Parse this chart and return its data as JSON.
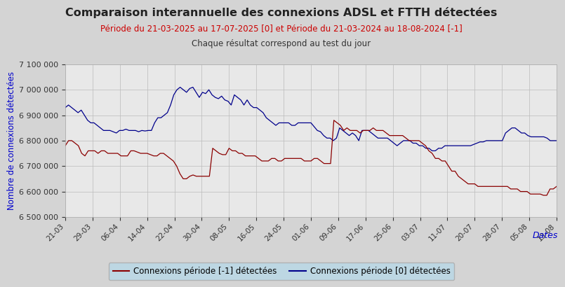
{
  "title": "Comparaison interannuelle des connexions ADSL et FTTH détectées",
  "subtitle": "Période du 21-03-2025 au 17-07-2025 [0] et Période du 21-03-2024 au 18-08-2024 [-1]",
  "subtitle2": "Chaque résultat correspond au test du jour",
  "xlabel": "Dates",
  "ylabel": "Nombre de connexions détectées",
  "title_color": "#222222",
  "subtitle_color": "#cc0000",
  "subtitle2_color": "#333333",
  "ylabel_color": "#0000cc",
  "xlabel_color": "#0000cc",
  "line0_color": "#00008B",
  "line1_color": "#8B0000",
  "bg_color": "#d4d4d4",
  "plot_bg_color": "#e8e8e8",
  "legend_bg_color": "#b8d8e8",
  "ylim": [
    6500000,
    7100000
  ],
  "yticks": [
    6500000,
    6600000,
    6700000,
    6800000,
    6900000,
    7000000,
    7100000
  ],
  "xtick_labels": [
    "21-03",
    "29-03",
    "06-04",
    "14-04",
    "22-04",
    "30-04",
    "08-05",
    "16-05",
    "24-05",
    "01-06",
    "09-06",
    "17-06",
    "25-06",
    "03-07",
    "11-07",
    "20-07",
    "28-07",
    "05-08",
    "13-08"
  ],
  "legend0_label": "Connexions période [-1] détectées",
  "legend1_label": "Connexions période [0] détectées",
  "blue_data": [
    6930000,
    6940000,
    6930000,
    6920000,
    6910000,
    6920000,
    6900000,
    6880000,
    6870000,
    6870000,
    6860000,
    6850000,
    6840000,
    6840000,
    6840000,
    6835000,
    6830000,
    6840000,
    6840000,
    6845000,
    6840000,
    6840000,
    6840000,
    6835000,
    6840000,
    6838000,
    6840000,
    6840000,
    6870000,
    6890000,
    6890000,
    6900000,
    6910000,
    6940000,
    6980000,
    7000000,
    7010000,
    7000000,
    6990000,
    7005000,
    7010000,
    6990000,
    6970000,
    6990000,
    6985000,
    7000000,
    6980000,
    6970000,
    6965000,
    6975000,
    6960000,
    6955000,
    6940000,
    6980000,
    6970000,
    6960000,
    6940000,
    6960000,
    6940000,
    6930000,
    6930000,
    6920000,
    6910000,
    6890000,
    6880000,
    6870000,
    6860000,
    6870000,
    6870000,
    6870000,
    6870000,
    6860000,
    6860000,
    6870000,
    6870000,
    6870000,
    6870000,
    6870000,
    6855000,
    6840000,
    6835000,
    6820000,
    6810000,
    6810000,
    6800000,
    6810000,
    6850000,
    6840000,
    6830000,
    6820000,
    6830000,
    6820000,
    6800000,
    6840000,
    6840000,
    6840000,
    6830000,
    6820000,
    6810000,
    6810000,
    6810000,
    6810000,
    6800000,
    6790000,
    6780000,
    6790000,
    6800000,
    6800000,
    6800000,
    6790000,
    6790000,
    6780000,
    6780000,
    6770000,
    6770000,
    6760000,
    6760000,
    6770000,
    6770000,
    6780000,
    6780000,
    6780000,
    6780000,
    6780000,
    6780000,
    6780000,
    6780000,
    6780000,
    6785000,
    6790000,
    6795000,
    6795000,
    6800000,
    6800000,
    6800000,
    6800000,
    6800000,
    6800000,
    6830000,
    6840000,
    6850000,
    6850000,
    6840000,
    6830000,
    6830000,
    6820000,
    6815000,
    6815000,
    6815000,
    6815000,
    6815000,
    6810000,
    6800000,
    6800000,
    6800000
  ],
  "red_data": [
    6780000,
    6800000,
    6800000,
    6790000,
    6780000,
    6750000,
    6740000,
    6760000,
    6760000,
    6760000,
    6750000,
    6760000,
    6760000,
    6750000,
    6750000,
    6750000,
    6750000,
    6740000,
    6740000,
    6740000,
    6760000,
    6760000,
    6755000,
    6750000,
    6750000,
    6750000,
    6745000,
    6740000,
    6740000,
    6750000,
    6750000,
    6740000,
    6730000,
    6720000,
    6700000,
    6670000,
    6650000,
    6650000,
    6660000,
    6665000,
    6660000,
    6660000,
    6660000,
    6660000,
    6660000,
    6770000,
    6760000,
    6750000,
    6745000,
    6745000,
    6770000,
    6760000,
    6760000,
    6750000,
    6750000,
    6740000,
    6740000,
    6740000,
    6740000,
    6730000,
    6720000,
    6720000,
    6720000,
    6730000,
    6730000,
    6720000,
    6720000,
    6730000,
    6730000,
    6730000,
    6730000,
    6730000,
    6730000,
    6720000,
    6720000,
    6720000,
    6730000,
    6730000,
    6720000,
    6710000,
    6710000,
    6710000,
    6880000,
    6870000,
    6860000,
    6840000,
    6850000,
    6840000,
    6840000,
    6840000,
    6830000,
    6840000,
    6840000,
    6840000,
    6850000,
    6840000,
    6840000,
    6840000,
    6830000,
    6820000,
    6820000,
    6820000,
    6820000,
    6820000,
    6810000,
    6800000,
    6800000,
    6800000,
    6800000,
    6790000,
    6780000,
    6760000,
    6750000,
    6730000,
    6730000,
    6720000,
    6720000,
    6700000,
    6680000,
    6680000,
    6660000,
    6650000,
    6640000,
    6630000,
    6630000,
    6630000,
    6620000,
    6620000,
    6620000,
    6620000,
    6620000,
    6620000,
    6620000,
    6620000,
    6620000,
    6620000,
    6610000,
    6610000,
    6610000,
    6600000,
    6600000,
    6600000,
    6590000,
    6590000,
    6590000,
    6590000,
    6585000,
    6585000,
    6610000,
    6610000,
    6620000
  ]
}
